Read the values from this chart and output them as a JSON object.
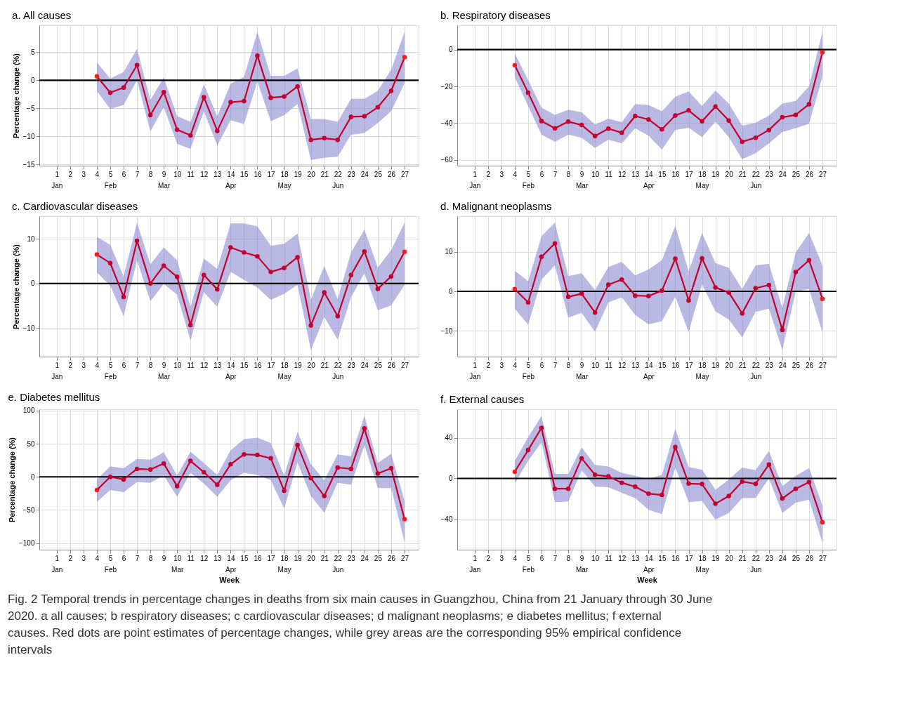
{
  "chart_data": [
    {
      "type": "line",
      "title": "a. All causes",
      "ylabel": "Percentage change (%)",
      "grid": true,
      "marker": "circle",
      "line_style": "solid",
      "x": [
        4,
        5,
        6,
        7,
        8,
        9,
        10,
        11,
        12,
        13,
        14,
        15,
        16,
        17,
        18,
        19,
        20,
        21,
        22,
        23,
        24,
        25,
        26,
        27
      ],
      "xlim": [
        -0.3,
        28.05
      ],
      "ylim": [
        -15.2,
        9.8
      ],
      "yticks": [
        5,
        0,
        -5,
        -10,
        -15
      ],
      "xticks": [
        {
          "value": 1,
          "label": "1\nJan"
        },
        2,
        3,
        4,
        {
          "value": 5,
          "label": "5\nFeb"
        },
        6,
        7,
        8,
        {
          "value": 9,
          "label": "9\nMar"
        },
        10,
        11,
        12,
        13,
        {
          "value": 14,
          "label": "14\nApr"
        },
        15,
        16,
        17,
        {
          "value": 18,
          "label": "18\nMay"
        },
        19,
        20,
        21,
        {
          "value": 22,
          "label": "22\nJun"
        },
        23,
        24,
        25,
        26,
        27
      ],
      "ref_lines": [
        {
          "axis": "y",
          "value": 0,
          "color": "#000000"
        }
      ],
      "series": [
        {
          "color": "#c4002f",
          "colors": [
            "#ff1a1a",
            "#c4002f",
            "#c4002f",
            "#c4002f",
            "#c4002f",
            "#c4002f",
            "#c4002f",
            "#c4002f",
            "#c4002f",
            "#c4002f",
            "#c4002f",
            "#c4002f",
            "#c4002f",
            "#c4002f",
            "#c4002f",
            "#c4002f",
            "#c4002f",
            "#c4002f",
            "#c4002f",
            "#c4002f",
            "#c4002f",
            "#c4002f",
            "#c4002f",
            "#ff1a1a"
          ],
          "values": [
            0.7,
            -2.2,
            -1.3,
            2.7,
            -6.2,
            -2.1,
            -8.8,
            -9.8,
            -3.0,
            -9.0,
            -3.9,
            -3.7,
            4.4,
            -3.1,
            -2.9,
            -1.1,
            -10.6,
            -10.3,
            -10.6,
            -6.5,
            -6.4,
            -4.8,
            -1.9,
            4.1
          ],
          "lower": [
            -1.9,
            -5.1,
            -4.4,
            0,
            -9.1,
            -4.8,
            -11.3,
            -12.2,
            -5.5,
            -11.6,
            -7.1,
            -7.8,
            -0.2,
            -7.3,
            -6.2,
            -4.2,
            -14.2,
            -13.8,
            -13.6,
            -9.7,
            -9.4,
            -7.6,
            -5.5,
            -0.5
          ],
          "upper": [
            3.2,
            0.3,
            1.5,
            5.6,
            -3.5,
            0.5,
            -6.4,
            -7.4,
            -0.7,
            -6.4,
            -0.6,
            0.6,
            8.6,
            0.8,
            0.8,
            2.1,
            -6.9,
            -6.9,
            -7.4,
            -3.3,
            -3.3,
            -1.9,
            1.9,
            8.6
          ]
        }
      ]
    },
    {
      "type": "line",
      "title": "b. Respiratory diseases",
      "grid": true,
      "marker": "circle",
      "line_style": "solid",
      "x": [
        4,
        5,
        6,
        7,
        8,
        9,
        10,
        11,
        12,
        13,
        14,
        15,
        16,
        17,
        18,
        19,
        20,
        21,
        22,
        23,
        24,
        25,
        26,
        27
      ],
      "xlim": [
        -0.3,
        28.05
      ],
      "ylim": [
        -63.1,
        13.2
      ],
      "yticks": [
        0,
        -20,
        -40,
        -60
      ],
      "xticks": [
        {
          "value": 1,
          "label": "1\nJan"
        },
        2,
        3,
        4,
        {
          "value": 5,
          "label": "5\nFeb"
        },
        6,
        7,
        8,
        {
          "value": 9,
          "label": "9\nMar"
        },
        10,
        11,
        12,
        13,
        {
          "value": 14,
          "label": "14\nApr"
        },
        15,
        16,
        17,
        {
          "value": 18,
          "label": "18\nMay"
        },
        19,
        20,
        21,
        {
          "value": 22,
          "label": "22\nJun"
        },
        23,
        24,
        25,
        26,
        27
      ],
      "ref_lines": [
        {
          "axis": "y",
          "value": 0,
          "color": "#000000"
        }
      ],
      "series": [
        {
          "color": "#c4002f",
          "colors": [
            "#ff1a1a",
            "#c4002f",
            "#c4002f",
            "#c4002f",
            "#c4002f",
            "#c4002f",
            "#c4002f",
            "#c4002f",
            "#c4002f",
            "#c4002f",
            "#c4002f",
            "#c4002f",
            "#c4002f",
            "#c4002f",
            "#c4002f",
            "#c4002f",
            "#c4002f",
            "#c4002f",
            "#c4002f",
            "#c4002f",
            "#c4002f",
            "#c4002f",
            "#c4002f",
            "#ff1a1a"
          ],
          "values": [
            -8.5,
            -23.4,
            -38.9,
            -42.8,
            -39.2,
            -41.0,
            -47.0,
            -43.0,
            -45.2,
            -36.1,
            -38.0,
            -43.4,
            -35.8,
            -33.1,
            -39.0,
            -31.0,
            -38.6,
            -50.1,
            -47.9,
            -43.7,
            -36.8,
            -35.5,
            -29.7,
            -1.5
          ],
          "lower": [
            -14.9,
            -30.7,
            -46.2,
            -50.1,
            -46.2,
            -47.9,
            -53.5,
            -49.0,
            -51.0,
            -42.8,
            -46.8,
            -54.4,
            -43.7,
            -42.5,
            -47.6,
            -39.2,
            -47.6,
            -59.7,
            -56.3,
            -51.0,
            -44.8,
            -42.8,
            -40.3,
            -14.9
          ],
          "upper": [
            -2.1,
            -16.6,
            -31.5,
            -35.5,
            -32.7,
            -34.1,
            -40.8,
            -37.5,
            -39.4,
            -29.6,
            -30.1,
            -33.5,
            -25.6,
            -22.8,
            -30.7,
            -22.3,
            -29.3,
            -41.4,
            -39.7,
            -35.8,
            -29.3,
            -27.9,
            -20.0,
            9.6
          ]
        }
      ]
    },
    {
      "type": "line",
      "title": "c. Cardiovascular diseases",
      "ylabel": "Percentage change (%)",
      "grid": true,
      "marker": "circle",
      "line_style": "solid",
      "x": [
        4,
        5,
        6,
        7,
        8,
        9,
        10,
        11,
        12,
        13,
        14,
        15,
        16,
        17,
        18,
        19,
        20,
        21,
        22,
        23,
        24,
        25,
        26,
        27
      ],
      "xlim": [
        -0.3,
        28.05
      ],
      "ylim": [
        -16.4,
        15.1
      ],
      "yticks": [
        10,
        0,
        -10
      ],
      "xticks": [
        {
          "value": 1,
          "label": "1\nJan"
        },
        2,
        3,
        4,
        {
          "value": 5,
          "label": "5\nFeb"
        },
        6,
        7,
        8,
        {
          "value": 9,
          "label": "9\nMar"
        },
        10,
        11,
        12,
        13,
        {
          "value": 14,
          "label": "14\nApr"
        },
        15,
        16,
        17,
        {
          "value": 18,
          "label": "18\nMay"
        },
        19,
        20,
        21,
        {
          "value": 22,
          "label": "22\nJun"
        },
        23,
        24,
        25,
        26,
        27
      ],
      "ref_lines": [
        {
          "axis": "y",
          "value": 0,
          "color": "#000000"
        }
      ],
      "series": [
        {
          "color": "#c4002f",
          "colors": [
            "#ff1a1a",
            "#c4002f",
            "#c4002f",
            "#c4002f",
            "#c4002f",
            "#c4002f",
            "#c4002f",
            "#c4002f",
            "#c4002f",
            "#c4002f",
            "#c4002f",
            "#c4002f",
            "#c4002f",
            "#c4002f",
            "#c4002f",
            "#c4002f",
            "#c4002f",
            "#c4002f",
            "#c4002f",
            "#c4002f",
            "#c4002f",
            "#c4002f",
            "#c4002f",
            "#ff1a1a"
          ],
          "values": [
            6.5,
            4.6,
            -3.0,
            9.6,
            0,
            4.0,
            1.5,
            -9.3,
            1.9,
            -1.3,
            8.1,
            7.0,
            6.1,
            2.6,
            3.5,
            5.9,
            -9.4,
            -2.0,
            -7.3,
            1.9,
            7.2,
            -1.2,
            1.6,
            7.1
          ],
          "lower": [
            2.5,
            -0.5,
            -7.3,
            5.2,
            -4.0,
            -0.1,
            -2.5,
            -12.8,
            -1.9,
            -5.2,
            2.6,
            0.8,
            -0.9,
            -3.7,
            -2.3,
            -0.3,
            -15.0,
            -7.5,
            -12.6,
            -3.1,
            2.3,
            -6.0,
            -4.9,
            -0.3
          ],
          "upper": [
            10.5,
            8.7,
            1.6,
            13.7,
            4.3,
            8.1,
            5.2,
            -5.3,
            5.6,
            3.3,
            13.5,
            13.5,
            12.8,
            8.5,
            8.9,
            11.2,
            -3.6,
            3.9,
            -3.5,
            7.0,
            12.1,
            3.6,
            7.5,
            13.7
          ]
        }
      ]
    },
    {
      "type": "line",
      "title": "d. Malignant neoplasms",
      "grid": true,
      "marker": "circle",
      "line_style": "solid",
      "x": [
        4,
        5,
        6,
        7,
        8,
        9,
        10,
        11,
        12,
        13,
        14,
        15,
        16,
        17,
        18,
        19,
        20,
        21,
        22,
        23,
        24,
        25,
        26,
        27
      ],
      "xlim": [
        -0.3,
        28.05
      ],
      "ylim": [
        -16.6,
        19.1
      ],
      "yticks": [
        10,
        0,
        -10
      ],
      "xticks": [
        {
          "value": 1,
          "label": "1\nJan"
        },
        2,
        3,
        4,
        {
          "value": 5,
          "label": "5\nFeb"
        },
        6,
        7,
        8,
        {
          "value": 9,
          "label": "9\nMar"
        },
        10,
        11,
        12,
        13,
        {
          "value": 14,
          "label": "14\nApr"
        },
        15,
        16,
        17,
        {
          "value": 18,
          "label": "18\nMay"
        },
        19,
        20,
        21,
        {
          "value": 22,
          "label": "22\nJun"
        },
        23,
        24,
        25,
        26,
        27
      ],
      "ref_lines": [
        {
          "axis": "y",
          "value": 0,
          "color": "#000000"
        }
      ],
      "series": [
        {
          "color": "#c4002f",
          "colors": [
            "#ff1a1a",
            "#c4002f",
            "#c4002f",
            "#c4002f",
            "#c4002f",
            "#c4002f",
            "#c4002f",
            "#c4002f",
            "#c4002f",
            "#c4002f",
            "#c4002f",
            "#c4002f",
            "#c4002f",
            "#c4002f",
            "#c4002f",
            "#c4002f",
            "#c4002f",
            "#c4002f",
            "#c4002f",
            "#c4002f",
            "#c4002f",
            "#c4002f",
            "#c4002f",
            "#ff1a1a"
          ],
          "values": [
            0.6,
            -2.8,
            8.8,
            12.2,
            -1.4,
            -0.6,
            -5.4,
            1.7,
            3.0,
            -1.1,
            -1.2,
            0.2,
            8.3,
            -2.3,
            8.4,
            1.0,
            -0.3,
            -5.6,
            0.8,
            1.6,
            -9.8,
            4.9,
            7.9,
            -1.9
          ],
          "lower": [
            -4.4,
            -8.5,
            3.0,
            6.6,
            -6.7,
            -5.5,
            -10.3,
            -2.8,
            -1.5,
            -6.0,
            -8.4,
            -7.6,
            -1.4,
            -10.4,
            1.8,
            -5.1,
            -7.2,
            -11.7,
            -5.2,
            -4.4,
            -14.9,
            -0.1,
            0.6,
            -10.5
          ],
          "upper": [
            5.2,
            2.6,
            14.0,
            17.5,
            3.9,
            4.6,
            0.3,
            6.2,
            7.5,
            4.0,
            5.6,
            7.9,
            16.7,
            5.1,
            14.8,
            7.2,
            6.0,
            0.6,
            6.6,
            7.0,
            -4.2,
            9.9,
            14.8,
            6.6
          ]
        }
      ]
    },
    {
      "type": "line",
      "title": "e. Diabetes mellitus",
      "xlabel": "Week",
      "ylabel": "Percentage change (%)",
      "grid": true,
      "marker": "circle",
      "line_style": "solid",
      "x": [
        4,
        5,
        6,
        7,
        8,
        9,
        10,
        11,
        12,
        13,
        14,
        15,
        16,
        17,
        18,
        19,
        20,
        21,
        22,
        23,
        24,
        25,
        26,
        27
      ],
      "xlim": [
        -0.3,
        28.05
      ],
      "ylim": [
        -110,
        102
      ],
      "yticks": [
        100,
        50,
        0,
        -50,
        -100
      ],
      "xticks": [
        {
          "value": 1,
          "label": "1\nJan"
        },
        2,
        3,
        4,
        {
          "value": 5,
          "label": "5\nFeb"
        },
        6,
        7,
        8,
        9,
        {
          "value": 10,
          "label": "10\nMar"
        },
        11,
        12,
        13,
        {
          "value": 14,
          "label": "14\nApr"
        },
        15,
        16,
        17,
        {
          "value": 18,
          "label": "18\nMay"
        },
        19,
        20,
        21,
        {
          "value": 22,
          "label": "22\nJun"
        },
        23,
        24,
        25,
        26,
        27
      ],
      "ref_lines": [
        {
          "axis": "y",
          "value": 0,
          "color": "#000000"
        }
      ],
      "series": [
        {
          "color": "#c4002f",
          "colors": [
            "#ff1a1a",
            "#c4002f",
            "#c4002f",
            "#c4002f",
            "#c4002f",
            "#c4002f",
            "#c4002f",
            "#c4002f",
            "#c4002f",
            "#c4002f",
            "#c4002f",
            "#c4002f",
            "#c4002f",
            "#c4002f",
            "#c4002f",
            "#c4002f",
            "#c4002f",
            "#c4002f",
            "#c4002f",
            "#c4002f",
            "#c4002f",
            "#c4002f",
            "#c4002f",
            "#ff1a1a"
          ],
          "values": [
            -20,
            0,
            -4,
            12,
            11,
            20,
            -14,
            24,
            7,
            -12,
            19,
            34,
            33,
            28,
            -21,
            48,
            -2,
            -29,
            14,
            12,
            73,
            5,
            13,
            -64
          ],
          "lower": [
            -38,
            -20,
            -23,
            -8,
            -9,
            2,
            -30,
            6,
            -10,
            -30,
            -5,
            6,
            3,
            -5,
            -48,
            22,
            -29,
            -54,
            -9,
            -12,
            48,
            -17,
            -17,
            -99
          ],
          "upper": [
            -4,
            16,
            13,
            27,
            26,
            37,
            2,
            38,
            21,
            3,
            40,
            57,
            59,
            51,
            2,
            68,
            19,
            -5,
            34,
            31,
            92,
            21,
            35,
            -36
          ]
        }
      ]
    },
    {
      "type": "line",
      "title": "f. External causes",
      "xlabel": "Week",
      "grid": true,
      "marker": "circle",
      "line_style": "solid",
      "x": [
        4,
        5,
        6,
        7,
        8,
        9,
        10,
        11,
        12,
        13,
        14,
        15,
        16,
        17,
        18,
        19,
        20,
        21,
        22,
        23,
        24,
        25,
        26,
        27
      ],
      "xlim": [
        -0.3,
        28.05
      ],
      "ylim": [
        -70.6,
        68.5
      ],
      "yticks": [
        40,
        0,
        -40
      ],
      "xticks": [
        {
          "value": 1,
          "label": "1\nJan"
        },
        2,
        3,
        4,
        {
          "value": 5,
          "label": "5\nFeb"
        },
        6,
        7,
        8,
        {
          "value": 9,
          "label": "9\nMar"
        },
        10,
        11,
        12,
        13,
        {
          "value": 14,
          "label": "14\nApr"
        },
        15,
        16,
        17,
        {
          "value": 18,
          "label": "18\nMay"
        },
        19,
        20,
        21,
        {
          "value": 22,
          "label": "22\nJun"
        },
        23,
        24,
        25,
        26,
        27
      ],
      "ref_lines": [
        {
          "axis": "y",
          "value": 0,
          "color": "#000000"
        }
      ],
      "annotations": [
        "Fig. 2 Temporal trends in percentage changes in deaths from six main causes in Guangzhou, China from 21 January through 30 June 2020. a all causes; b respiratory diseases; c cardiovascular diseases; d malignant neoplasms; e diabetes mellitus; f external causes. Red dots are point estimates of percentage changes, while grey areas are the corresponding 95% empirical confidence intervals"
      ],
      "series": [
        {
          "color": "#c4002f",
          "colors": [
            "#ff1a1a",
            "#c4002f",
            "#c4002f",
            "#c4002f",
            "#c4002f",
            "#c4002f",
            "#c4002f",
            "#c4002f",
            "#c4002f",
            "#c4002f",
            "#c4002f",
            "#c4002f",
            "#c4002f",
            "#c4002f",
            "#c4002f",
            "#c4002f",
            "#c4002f",
            "#c4002f",
            "#c4002f",
            "#c4002f",
            "#c4002f",
            "#c4002f",
            "#c4002f",
            "#ff1a1a"
          ],
          "values": [
            6.6,
            28.1,
            50.1,
            -10.2,
            -10.2,
            19.9,
            3.6,
            2.0,
            -4.3,
            -8.2,
            -15.1,
            -16.4,
            31.2,
            -5.1,
            -5.6,
            -25.1,
            -17.4,
            -3.1,
            -5.4,
            13.8,
            -19.9,
            -10.2,
            -3.6,
            -43.5
          ],
          "lower": [
            -5.1,
            17.4,
            35.8,
            -23.5,
            -23.0,
            8.2,
            -8.2,
            -8.7,
            -14.3,
            -19.4,
            -31.2,
            -35.3,
            10.7,
            -23.5,
            -22.5,
            -40.9,
            -34.3,
            -19.4,
            -19.4,
            0,
            -34.3,
            -24.0,
            -21.0,
            -63.9
          ],
          "upper": [
            17.4,
            40.8,
            61.8,
            4.6,
            4.6,
            30.7,
            13.3,
            11.8,
            5.6,
            2.6,
            -0.5,
            3.6,
            49.1,
            11.3,
            8.7,
            -11.3,
            -1.0,
            10.7,
            8.2,
            27.1,
            -7.7,
            2.6,
            10.2,
            -26.6
          ]
        }
      ]
    }
  ]
}
